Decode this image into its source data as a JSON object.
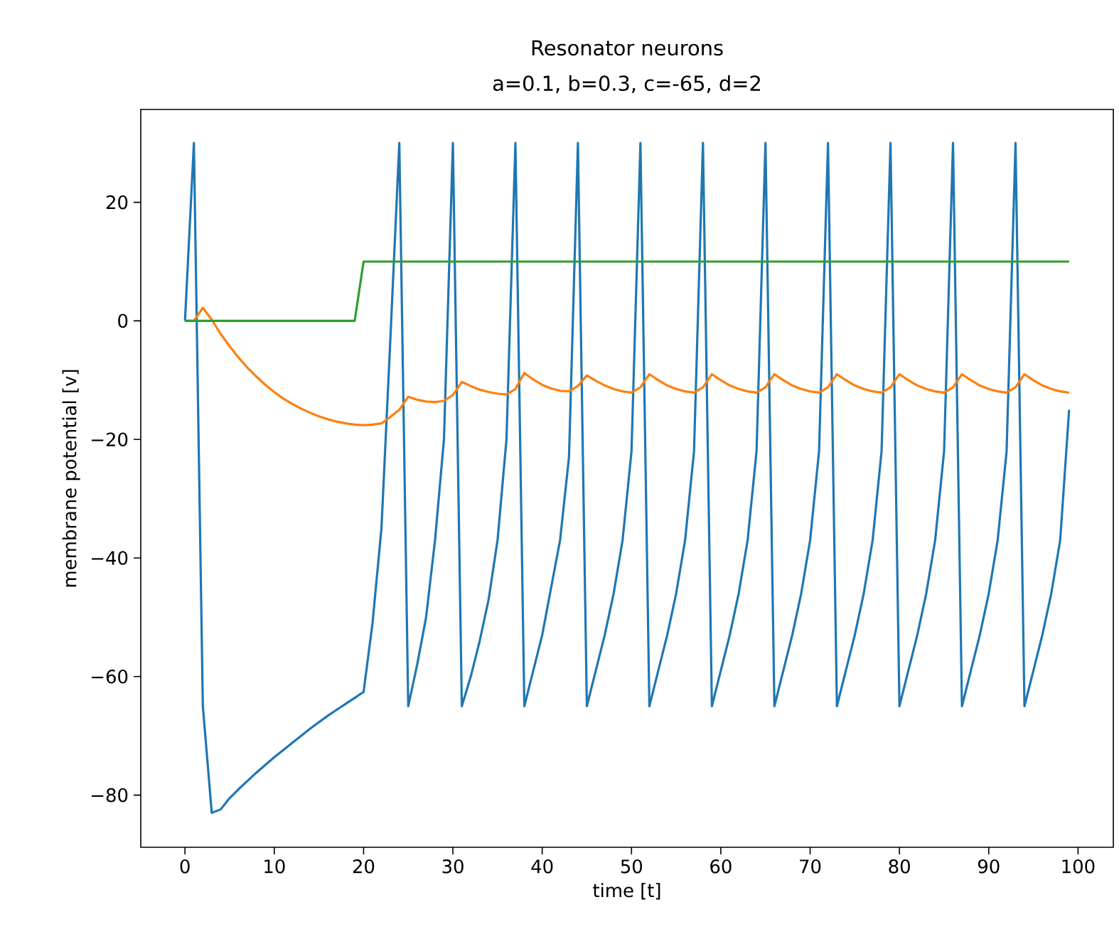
{
  "chart_data": {
    "type": "line",
    "title": "Resonator neurons",
    "subtitle": "a=0.1, b=0.3, c=-65, d=2",
    "xlabel": "time [t]",
    "ylabel": "membrane potential [v]",
    "x": [
      0,
      1,
      2,
      3,
      4,
      5,
      6,
      7,
      8,
      9,
      10,
      11,
      12,
      13,
      14,
      15,
      16,
      17,
      18,
      19,
      20,
      21,
      22,
      23,
      24,
      25,
      26,
      27,
      28,
      29,
      30,
      31,
      32,
      33,
      34,
      35,
      36,
      37,
      38,
      39,
      40,
      41,
      42,
      43,
      44,
      45,
      46,
      47,
      48,
      49,
      50,
      51,
      52,
      53,
      54,
      55,
      56,
      57,
      58,
      59,
      60,
      61,
      62,
      63,
      64,
      65,
      66,
      67,
      68,
      69,
      70,
      71,
      72,
      73,
      74,
      75,
      76,
      77,
      78,
      79,
      80,
      81,
      82,
      83,
      84,
      85,
      86,
      87,
      88,
      89,
      90,
      91,
      92,
      93,
      94,
      95,
      96,
      97,
      98,
      99
    ],
    "series": [
      {
        "color": "#1f77b4",
        "values": [
          0,
          30,
          -65,
          -83,
          -82.4,
          -80.5,
          -79,
          -77.6,
          -76.2,
          -74.9,
          -73.6,
          -72.4,
          -71.2,
          -70,
          -68.8,
          -67.7,
          -66.6,
          -65.6,
          -64.6,
          -63.6,
          -62.6,
          -51,
          -35,
          -3,
          30,
          -65,
          -58,
          -50,
          -37,
          -20,
          30,
          -65,
          -60,
          -54,
          -47,
          -37,
          -20,
          30,
          -65,
          -59,
          -53,
          -45,
          -37,
          -23,
          30,
          -65,
          -59,
          -53,
          -46,
          -37,
          -22,
          30,
          -65,
          -59,
          -53,
          -46,
          -37,
          -22,
          30,
          -65,
          -59,
          -53,
          -46,
          -37,
          -22,
          30,
          -65,
          -59,
          -53,
          -46,
          -37,
          -22,
          30,
          -65,
          -59,
          -53,
          -46,
          -37,
          -22,
          30,
          -65,
          -59,
          -53,
          -46,
          -37,
          -22,
          30,
          -65,
          -59,
          -53,
          -46,
          -37,
          -22,
          30,
          -65,
          -59,
          -53,
          -46,
          -37,
          -15
        ]
      },
      {
        "color": "#ff7f0e",
        "values": [
          0,
          0,
          2.2,
          0.2,
          -2.2,
          -4.3,
          -6.2,
          -7.9,
          -9.4,
          -10.8,
          -12,
          -13.1,
          -14,
          -14.8,
          -15.5,
          -16.1,
          -16.6,
          -17,
          -17.3,
          -17.5,
          -17.6,
          -17.5,
          -17.3,
          -16.2,
          -15,
          -12.8,
          -13.3,
          -13.6,
          -13.7,
          -13.5,
          -12.5,
          -10.3,
          -11,
          -11.6,
          -12,
          -12.3,
          -12.4,
          -11.5,
          -8.8,
          -9.9,
          -10.8,
          -11.4,
          -11.8,
          -11.9,
          -11,
          -9.2,
          -10.1,
          -10.9,
          -11.5,
          -11.9,
          -12.1,
          -11.2,
          -9,
          -10,
          -10.9,
          -11.5,
          -11.9,
          -12.1,
          -11.2,
          -9,
          -10,
          -10.9,
          -11.5,
          -11.9,
          -12.1,
          -11.2,
          -9,
          -10,
          -10.9,
          -11.5,
          -11.9,
          -12.1,
          -11.2,
          -9,
          -10,
          -10.9,
          -11.5,
          -11.9,
          -12.1,
          -11.2,
          -9,
          -10,
          -10.9,
          -11.5,
          -11.9,
          -12.1,
          -11.2,
          -9,
          -10,
          -10.9,
          -11.5,
          -11.9,
          -12.1,
          -11.2,
          -9,
          -10,
          -10.9,
          -11.5,
          -11.9,
          -12.1
        ]
      },
      {
        "color": "#2ca02c",
        "values": [
          0,
          0,
          0,
          0,
          0,
          0,
          0,
          0,
          0,
          0,
          0,
          0,
          0,
          0,
          0,
          0,
          0,
          0,
          0,
          0,
          10,
          10,
          10,
          10,
          10,
          10,
          10,
          10,
          10,
          10,
          10,
          10,
          10,
          10,
          10,
          10,
          10,
          10,
          10,
          10,
          10,
          10,
          10,
          10,
          10,
          10,
          10,
          10,
          10,
          10,
          10,
          10,
          10,
          10,
          10,
          10,
          10,
          10,
          10,
          10,
          10,
          10,
          10,
          10,
          10,
          10,
          10,
          10,
          10,
          10,
          10,
          10,
          10,
          10,
          10,
          10,
          10,
          10,
          10,
          10,
          10,
          10,
          10,
          10,
          10,
          10,
          10,
          10,
          10,
          10,
          10,
          10,
          10,
          10,
          10,
          10,
          10,
          10,
          10,
          10
        ]
      }
    ],
    "xlim": [
      -4.95,
      103.95
    ],
    "ylim": [
      -88.8,
      35.66
    ],
    "xticks": [
      0,
      10,
      20,
      30,
      40,
      50,
      60,
      70,
      80,
      90,
      100
    ],
    "yticks": [
      {
        "value": -80,
        "label": "−80"
      },
      {
        "value": -60,
        "label": "−60"
      },
      {
        "value": -40,
        "label": "−40"
      },
      {
        "value": -20,
        "label": "−20"
      },
      0,
      20
    ]
  }
}
